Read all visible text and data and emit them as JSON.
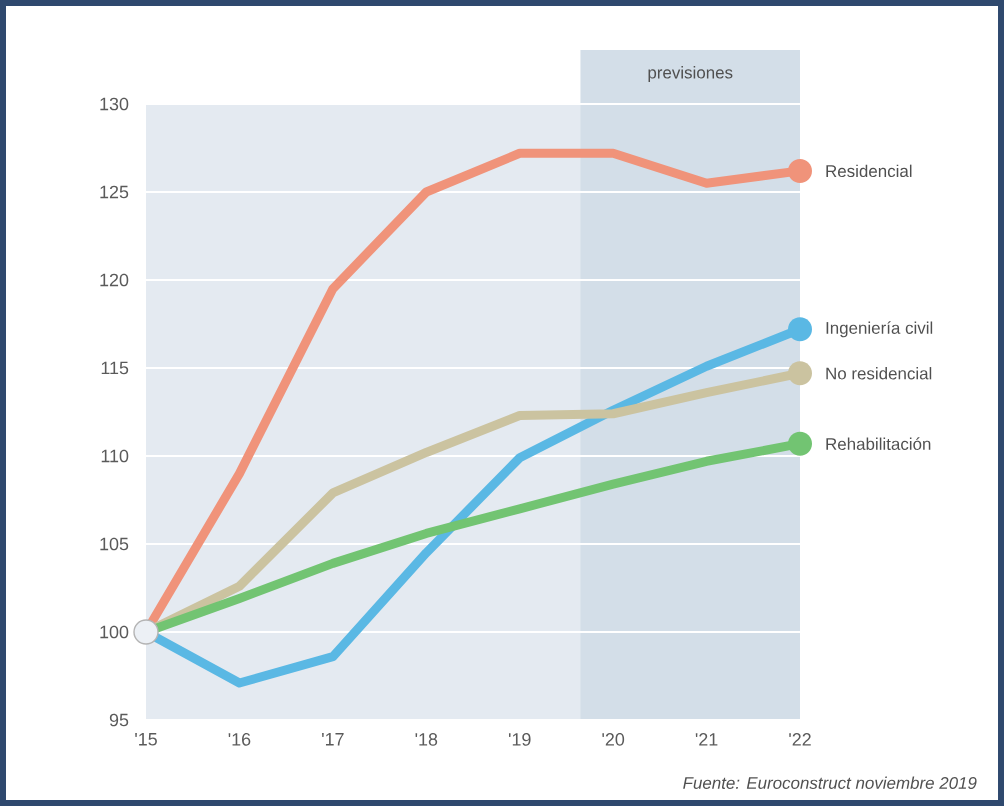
{
  "chart_data": {
    "type": "line",
    "x": [
      2015,
      2016,
      2017,
      2018,
      2019,
      2020,
      2021,
      2022
    ],
    "series": [
      {
        "name": "Residencial",
        "color": "#f0937a",
        "values": [
          100,
          109,
          119.5,
          125,
          127.2,
          127.2,
          125.5,
          126.2
        ]
      },
      {
        "name": "Ingeniería civil",
        "color": "#5ab8e4",
        "values": [
          100,
          97.1,
          98.6,
          104.5,
          109.9,
          112.6,
          115.1,
          117.2
        ]
      },
      {
        "name": "No residencial",
        "color": "#cbc3a0",
        "values": [
          100,
          102.6,
          107.9,
          110.2,
          112.3,
          112.4,
          113.6,
          114.7
        ]
      },
      {
        "name": "Rehabilitación",
        "color": "#72c472",
        "values": [
          100,
          101.9,
          103.9,
          105.6,
          107,
          108.4,
          109.7,
          110.7
        ]
      }
    ],
    "xlim": [
      2015,
      2022
    ],
    "xticks": [
      {
        "value": 2015,
        "label": "'15"
      },
      {
        "value": 2016,
        "label": "'16"
      },
      {
        "value": 2017,
        "label": "'17"
      },
      {
        "value": 2018,
        "label": "'18"
      },
      {
        "value": 2019,
        "label": "'19"
      },
      {
        "value": 2020,
        "label": "'20"
      },
      {
        "value": 2021,
        "label": "'21"
      },
      {
        "value": 2022,
        "label": "'22"
      }
    ],
    "ylim": [
      95,
      130
    ],
    "yticks": [
      95,
      100,
      105,
      110,
      115,
      120,
      125,
      130
    ],
    "grid": "y",
    "line_style": "solid",
    "bands": [
      {
        "axis": "x",
        "from": 2019.65,
        "to": 2022,
        "label": "previsiones",
        "color": "#d3dee8"
      }
    ],
    "annotations": [
      "Fuente: Euroconstruct noviembre 2019"
    ]
  }
}
